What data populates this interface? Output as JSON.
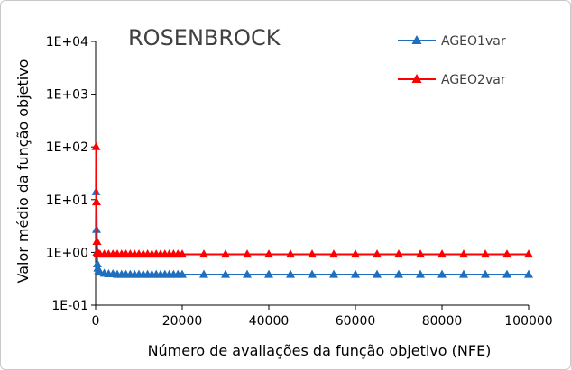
{
  "chart_data": {
    "type": "line",
    "title": "ROSENBROCK",
    "xlabel": "Número de avaliações da função objetivo (NFE)",
    "ylabel": "Valor médio da função objetivo",
    "xlim": [
      0,
      100000
    ],
    "ylim": [
      0.1,
      10000
    ],
    "yscale": "log",
    "grid": false,
    "legend_position": "top-right",
    "x_ticks": [
      0,
      20000,
      40000,
      60000,
      80000,
      100000
    ],
    "x_tick_labels": [
      "0",
      "20000",
      "40000",
      "60000",
      "80000",
      "100000"
    ],
    "y_ticks": [
      0.1,
      1,
      10,
      100,
      1000,
      10000
    ],
    "y_tick_labels": [
      "1E-01",
      "1E+00",
      "1E+01",
      "1E+02",
      "1E+03",
      "1E+04"
    ],
    "series": [
      {
        "name": "AGEO1var",
        "color": "#1f6fbf",
        "x": [
          100,
          200,
          300,
          400,
          500,
          700,
          1000,
          2000,
          3000,
          4000,
          5000,
          6000,
          7000,
          8000,
          9000,
          10000,
          11000,
          12000,
          13000,
          14000,
          15000,
          16000,
          17000,
          18000,
          19000,
          20000,
          25000,
          30000,
          35000,
          40000,
          45000,
          50000,
          55000,
          60000,
          65000,
          70000,
          75000,
          80000,
          85000,
          90000,
          95000,
          100000
        ],
        "y": [
          14,
          2.7,
          1.0,
          0.6,
          0.5,
          0.45,
          0.42,
          0.4,
          0.39,
          0.39,
          0.38,
          0.38,
          0.38,
          0.38,
          0.38,
          0.38,
          0.38,
          0.38,
          0.38,
          0.38,
          0.38,
          0.38,
          0.38,
          0.38,
          0.38,
          0.38,
          0.38,
          0.38,
          0.38,
          0.38,
          0.38,
          0.38,
          0.38,
          0.38,
          0.38,
          0.38,
          0.38,
          0.38,
          0.38,
          0.38,
          0.38,
          0.38
        ]
      },
      {
        "name": "AGEO2var",
        "color": "#ff0000",
        "x": [
          100,
          200,
          300,
          400,
          500,
          700,
          1000,
          2000,
          3000,
          4000,
          5000,
          6000,
          7000,
          8000,
          9000,
          10000,
          11000,
          12000,
          13000,
          14000,
          15000,
          16000,
          17000,
          18000,
          19000,
          20000,
          25000,
          30000,
          35000,
          40000,
          45000,
          50000,
          55000,
          60000,
          65000,
          70000,
          75000,
          80000,
          85000,
          90000,
          95000,
          100000
        ],
        "y": [
          100,
          9,
          1.6,
          1.0,
          0.95,
          0.93,
          0.92,
          0.92,
          0.92,
          0.92,
          0.92,
          0.92,
          0.92,
          0.92,
          0.92,
          0.92,
          0.92,
          0.92,
          0.92,
          0.92,
          0.92,
          0.92,
          0.92,
          0.92,
          0.92,
          0.92,
          0.92,
          0.92,
          0.92,
          0.92,
          0.92,
          0.92,
          0.92,
          0.92,
          0.92,
          0.92,
          0.92,
          0.92,
          0.92,
          0.92,
          0.92,
          0.92
        ]
      }
    ]
  }
}
